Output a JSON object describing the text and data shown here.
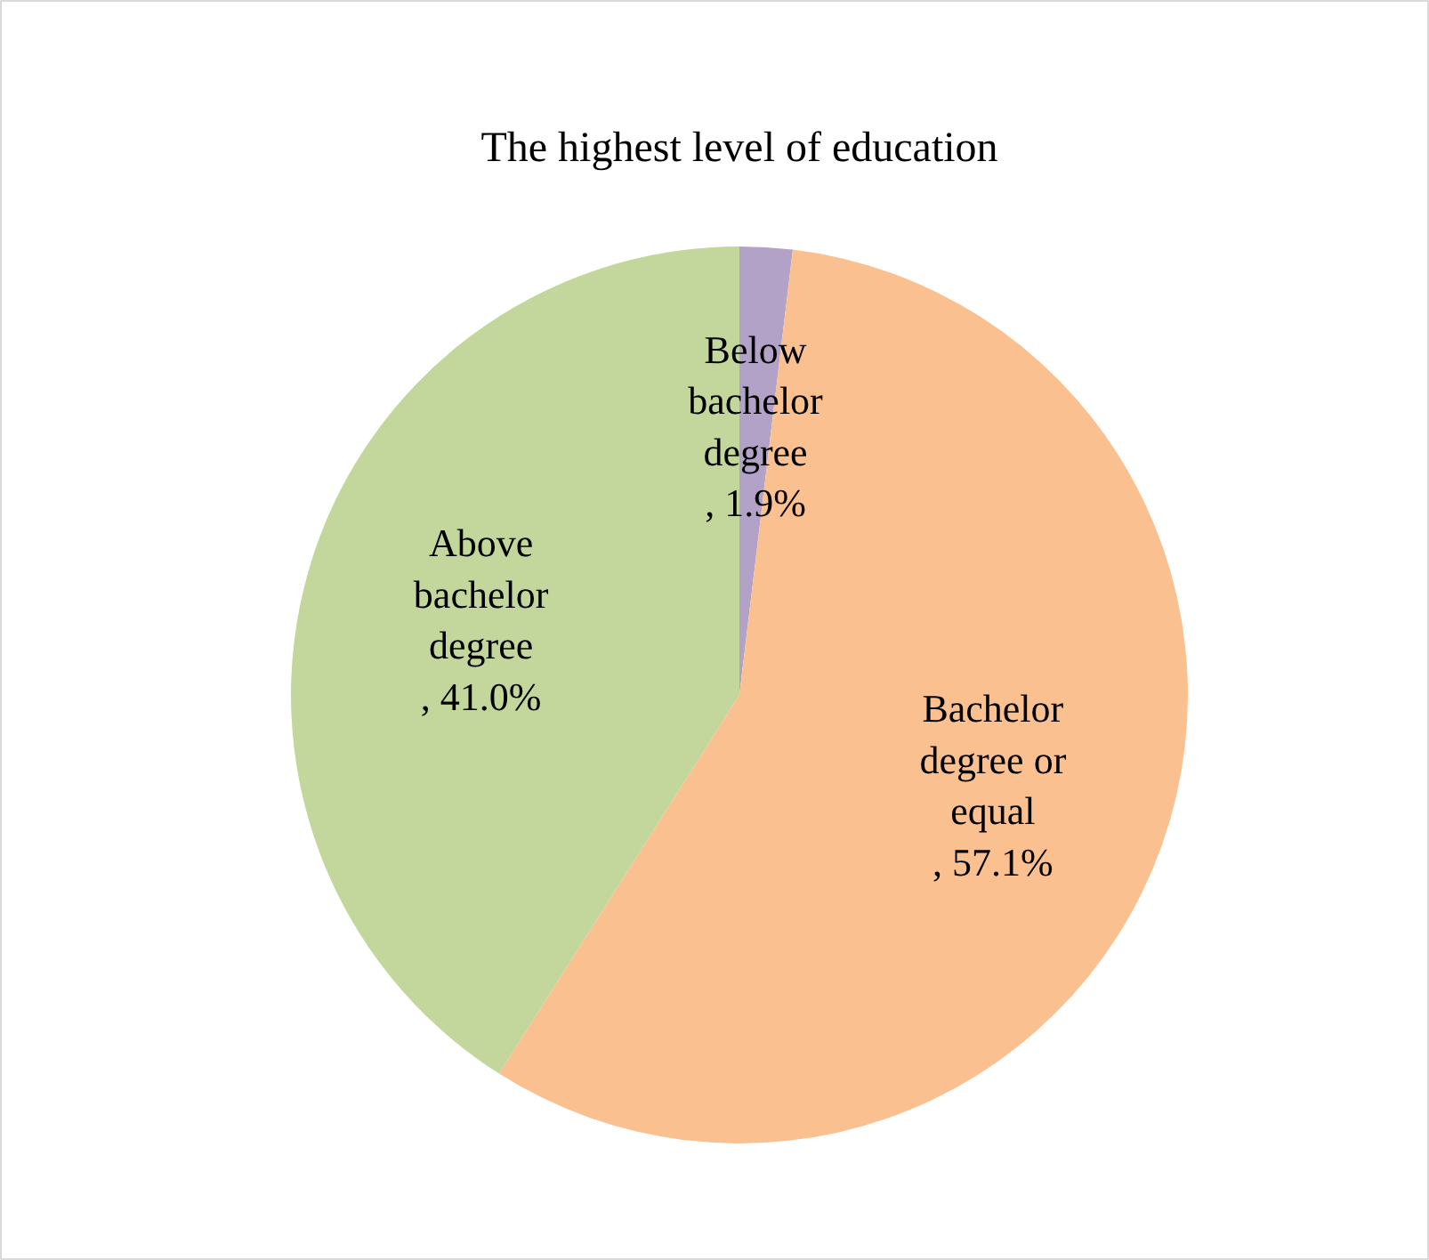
{
  "chart_data": {
    "type": "pie",
    "title": "The highest level of education",
    "categories": [
      "Below bachelor degree",
      "Bachelor degree or equal",
      "Above bachelor degree"
    ],
    "values": [
      1.9,
      57.1,
      41.0
    ],
    "value_labels": [
      ", 1.9%",
      ", 57.1%",
      ", 41.0%"
    ],
    "colors": [
      "#b3a2c7",
      "#fac090",
      "#c3d69b"
    ]
  }
}
